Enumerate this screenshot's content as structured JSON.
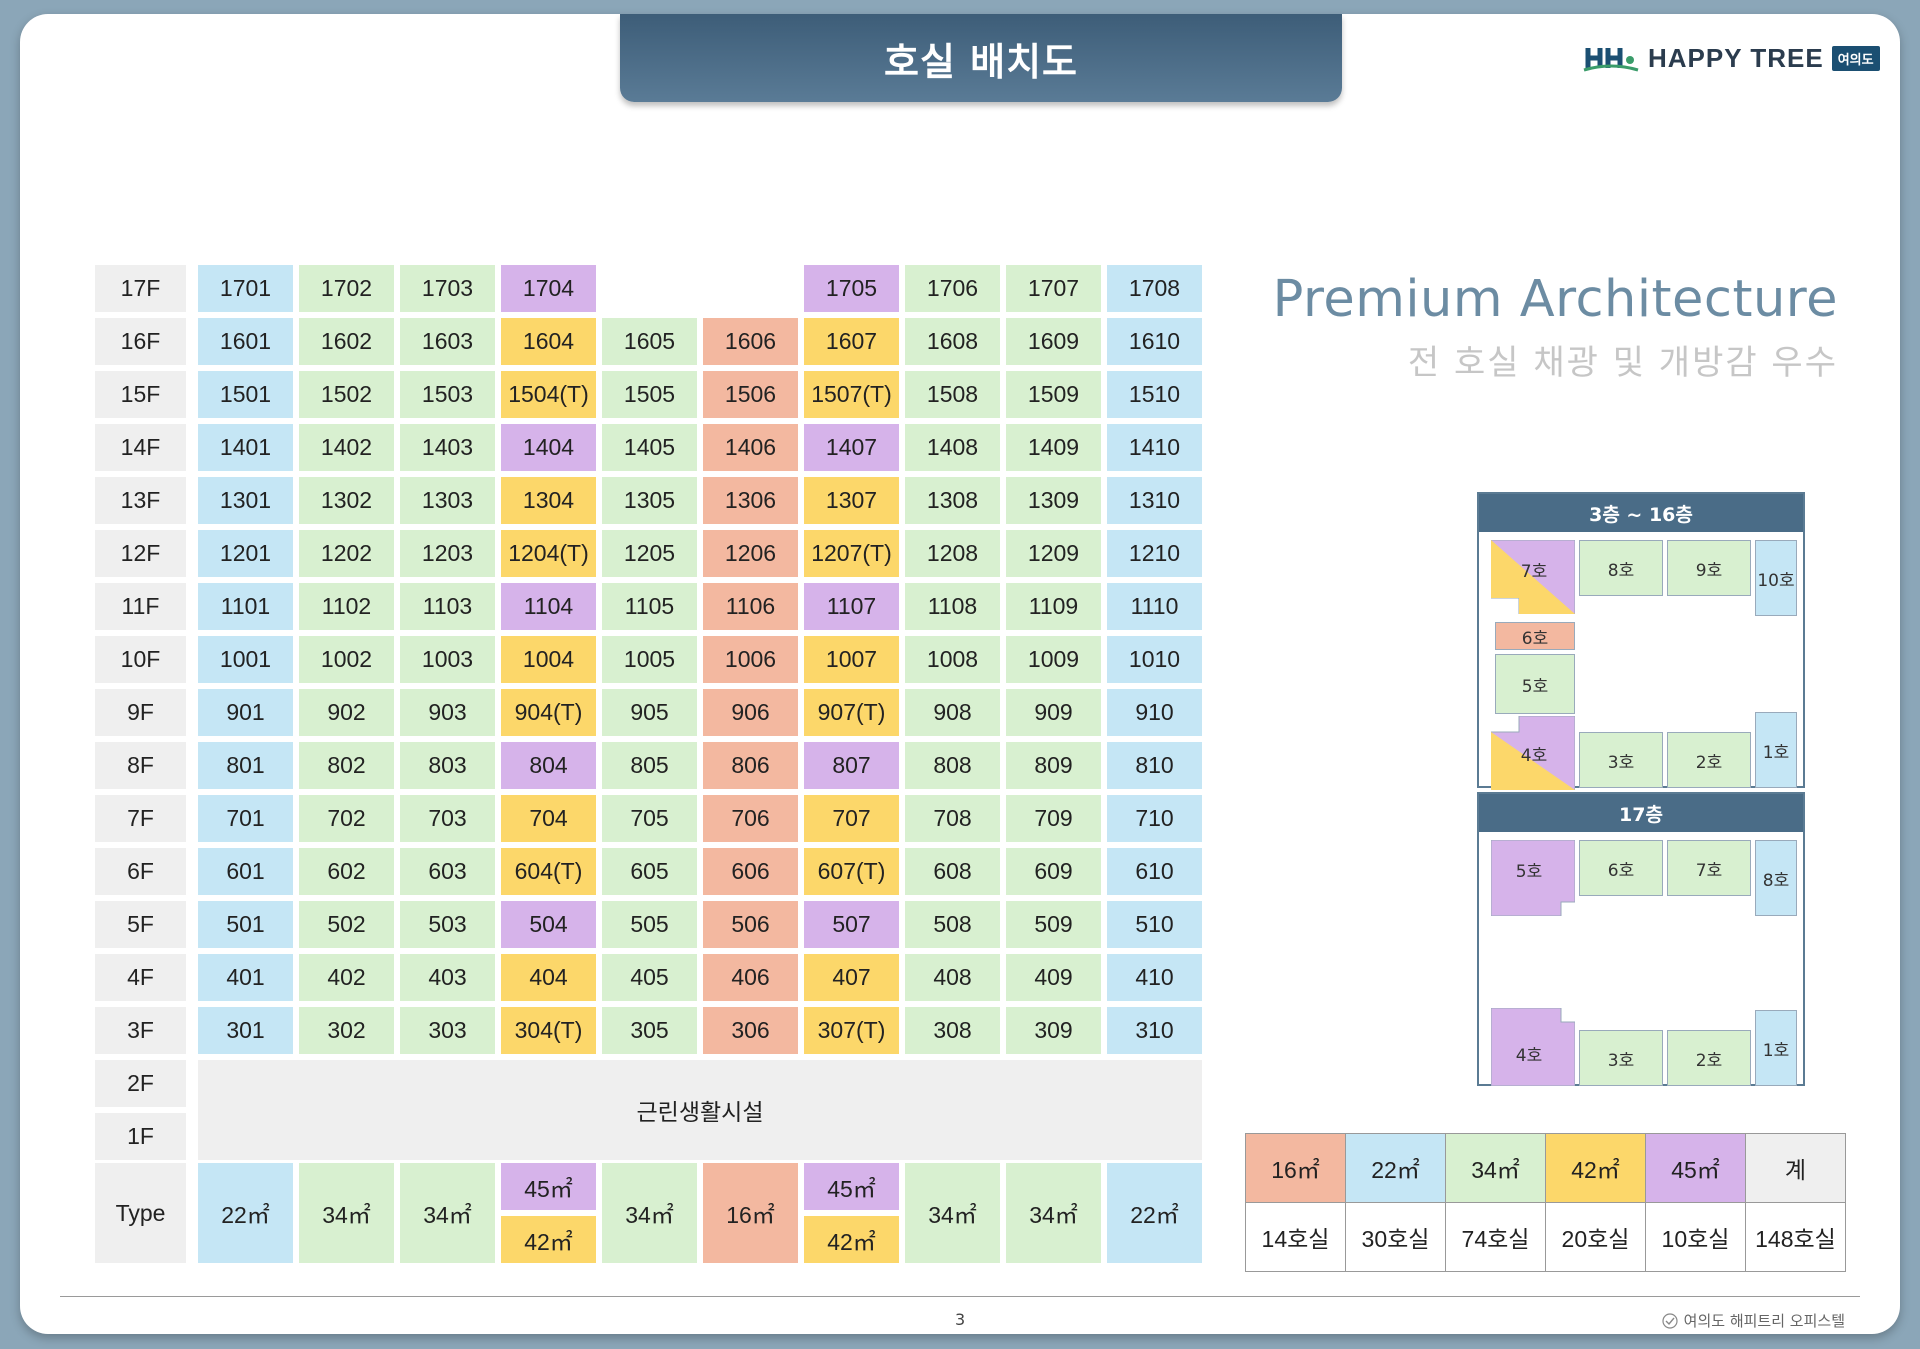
{
  "header": {
    "title": "호실 배치도"
  },
  "logo": {
    "text": "HAPPY TREE",
    "badge": "여의도"
  },
  "premium": {
    "title": "Premium Architecture",
    "subtitle": "전 호실 채광 및 개방감 우수"
  },
  "floor_labels": [
    "17F",
    "16F",
    "15F",
    "14F",
    "13F",
    "12F",
    "11F",
    "10F",
    "9F",
    "8F",
    "7F",
    "6F",
    "5F",
    "4F",
    "3F",
    "2F",
    "1F"
  ],
  "rooms": {
    "f17": [
      "1701",
      "1702",
      "1703",
      "1704",
      "1705",
      "1706",
      "1707",
      "1708"
    ],
    "f16": [
      "1601",
      "1602",
      "1603",
      "1604",
      "1605",
      "1606",
      "1607",
      "1608",
      "1609",
      "1610"
    ],
    "f15": [
      "1501",
      "1502",
      "1503",
      "1504(T)",
      "1505",
      "1506",
      "1507(T)",
      "1508",
      "1509",
      "1510"
    ],
    "f14": [
      "1401",
      "1402",
      "1403",
      "1404",
      "1405",
      "1406",
      "1407",
      "1408",
      "1409",
      "1410"
    ],
    "f13": [
      "1301",
      "1302",
      "1303",
      "1304",
      "1305",
      "1306",
      "1307",
      "1308",
      "1309",
      "1310"
    ],
    "f12": [
      "1201",
      "1202",
      "1203",
      "1204(T)",
      "1205",
      "1206",
      "1207(T)",
      "1208",
      "1209",
      "1210"
    ],
    "f11": [
      "1101",
      "1102",
      "1103",
      "1104",
      "1105",
      "1106",
      "1107",
      "1108",
      "1109",
      "1110"
    ],
    "f10": [
      "1001",
      "1002",
      "1003",
      "1004",
      "1005",
      "1006",
      "1007",
      "1008",
      "1009",
      "1010"
    ],
    "f9": [
      "901",
      "902",
      "903",
      "904(T)",
      "905",
      "906",
      "907(T)",
      "908",
      "909",
      "910"
    ],
    "f8": [
      "801",
      "802",
      "803",
      "804",
      "805",
      "806",
      "807",
      "808",
      "809",
      "810"
    ],
    "f7": [
      "701",
      "702",
      "703",
      "704",
      "705",
      "706",
      "707",
      "708",
      "709",
      "710"
    ],
    "f6": [
      "601",
      "602",
      "603",
      "604(T)",
      "605",
      "606",
      "607(T)",
      "608",
      "609",
      "610"
    ],
    "f5": [
      "501",
      "502",
      "503",
      "504",
      "505",
      "506",
      "507",
      "508",
      "509",
      "510"
    ],
    "f4": [
      "401",
      "402",
      "403",
      "404",
      "405",
      "406",
      "407",
      "408",
      "409",
      "410"
    ],
    "f3": [
      "301",
      "302",
      "303",
      "304(T)",
      "305",
      "306",
      "307(T)",
      "308",
      "309",
      "310"
    ]
  },
  "facility": "근린생활시설",
  "type_row": {
    "label": "Type",
    "values": [
      "22㎡",
      "34㎡",
      "34㎡",
      "45㎡",
      "42㎡",
      "34㎡",
      "16㎡",
      "45㎡",
      "42㎡",
      "34㎡",
      "34㎡",
      "22㎡"
    ]
  },
  "plan_3_16": {
    "title": "3층 ~ 16층",
    "units": [
      "7호",
      "8호",
      "9호",
      "10호",
      "6호",
      "5호",
      "4호",
      "3호",
      "2호",
      "1호"
    ]
  },
  "plan_17": {
    "title": "17층",
    "units": [
      "5호",
      "6호",
      "7호",
      "8호",
      "4호",
      "3호",
      "2호",
      "1호"
    ]
  },
  "summary": {
    "headers": [
      "16㎡",
      "22㎡",
      "34㎡",
      "42㎡",
      "45㎡",
      "계"
    ],
    "values": [
      "14호실",
      "30호실",
      "74호실",
      "20호실",
      "10호실",
      "148호실"
    ]
  },
  "colors": {
    "blue": "#c5e6f5",
    "green": "#d8f0d0",
    "yellow": "#fcd76a",
    "purple": "#d6b3ea",
    "salmon": "#f3b8a0",
    "grey": "#efefef"
  },
  "footer": {
    "page": "3",
    "brand": "여의도 해피트리 오피스텔"
  }
}
